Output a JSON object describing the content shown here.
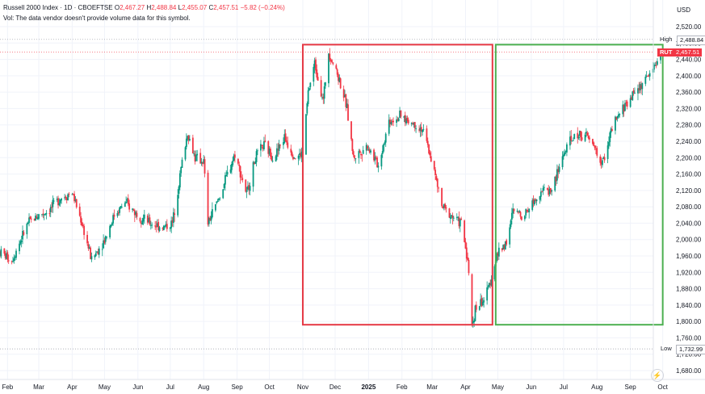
{
  "header": {
    "symbol": "Russell 2000 Index · 1D · CBOEFTSE",
    "o_label": "O",
    "o_value": "2,467.27",
    "h_label": "H",
    "h_value": "2,488.84",
    "l_label": "L",
    "l_value": "2,455.07",
    "c_label": "C",
    "c_value": "2,457.51",
    "change": "−5.82 (−0.24%)",
    "vol_note": "Vol: The data vendor doesn't provide volume data for this symbol."
  },
  "currency": "USD",
  "tags": {
    "high_label": "High",
    "high_value": "2,488.84",
    "rut_label": "RUT",
    "rut_value": "2,457.51",
    "low_label": "Low",
    "low_value": "1,732.99"
  },
  "logo_icon": "tradingview-logo-icon",
  "colors": {
    "up": "#089981",
    "down": "#f23645",
    "box_red": "#e53945",
    "box_green": "#4caf50"
  },
  "chart_data": {
    "type": "candlestick",
    "y_ticks": [
      "2,520.00",
      "2,480.00",
      "2,440.00",
      "2,400.00",
      "2,360.00",
      "2,320.00",
      "2,280.00",
      "2,240.00",
      "2,200.00",
      "2,160.00",
      "2,120.00",
      "2,080.00",
      "2,040.00",
      "2,000.00",
      "1,960.00",
      "1,920.00",
      "1,880.00",
      "1,840.00",
      "1,800.00",
      "1,760.00",
      "1,720.00",
      "1,680.00"
    ],
    "y_tick_values": [
      2520,
      2480,
      2440,
      2400,
      2360,
      2320,
      2280,
      2240,
      2200,
      2160,
      2120,
      2080,
      2040,
      2000,
      1960,
      1920,
      1880,
      1840,
      1800,
      1760,
      1720,
      1680
    ],
    "x_labels": [
      "Feb",
      "Mar",
      "Apr",
      "May",
      "Jun",
      "Jul",
      "Aug",
      "Sep",
      "Oct",
      "Nov",
      "Dec",
      "2025",
      "Feb",
      "Mar",
      "Apr",
      "May",
      "Jun",
      "Jul",
      "Aug",
      "Sep",
      "Oct"
    ],
    "x_label_dates": [
      "2024-02-01",
      "2024-03-01",
      "2024-04-01",
      "2024-05-01",
      "2024-06-01",
      "2024-07-01",
      "2024-08-01",
      "2024-09-01",
      "2024-10-01",
      "2024-11-01",
      "2024-12-01",
      "2025-01-01",
      "2025-02-01",
      "2025-03-01",
      "2025-04-01",
      "2025-05-01",
      "2025-06-01",
      "2025-07-01",
      "2025-08-01",
      "2025-09-01",
      "2025-10-01"
    ],
    "ylim": [
      1660,
      2540
    ],
    "high": 2488.84,
    "last": 2457.51,
    "low": 1732.99,
    "path": [
      [
        "2024-01-25",
        1970
      ],
      [
        "2024-02-05",
        1950
      ],
      [
        "2024-02-20",
        2040
      ],
      [
        "2024-03-01",
        2060
      ],
      [
        "2024-03-10",
        2070
      ],
      [
        "2024-03-20",
        2100
      ],
      [
        "2024-04-01",
        2115
      ],
      [
        "2024-04-10",
        2040
      ],
      [
        "2024-04-19",
        1950
      ],
      [
        "2024-05-01",
        2000
      ],
      [
        "2024-05-10",
        2060
      ],
      [
        "2024-05-20",
        2090
      ],
      [
        "2024-06-01",
        2060
      ],
      [
        "2024-06-12",
        2040
      ],
      [
        "2024-06-25",
        2030
      ],
      [
        "2024-07-03",
        2040
      ],
      [
        "2024-07-12",
        2190
      ],
      [
        "2024-07-17",
        2260
      ],
      [
        "2024-07-24",
        2200
      ],
      [
        "2024-08-01",
        2190
      ],
      [
        "2024-08-05",
        2040
      ],
      [
        "2024-08-15",
        2100
      ],
      [
        "2024-08-30",
        2210
      ],
      [
        "2024-09-10",
        2110
      ],
      [
        "2024-09-18",
        2200
      ],
      [
        "2024-09-26",
        2230
      ],
      [
        "2024-10-05",
        2200
      ],
      [
        "2024-10-15",
        2250
      ],
      [
        "2024-10-25",
        2200
      ],
      [
        "2024-11-01",
        2210
      ],
      [
        "2024-11-06",
        2360
      ],
      [
        "2024-11-12",
        2430
      ],
      [
        "2024-11-20",
        2340
      ],
      [
        "2024-11-25",
        2460
      ],
      [
        "2024-12-05",
        2390
      ],
      [
        "2024-12-12",
        2320
      ],
      [
        "2024-12-18",
        2200
      ],
      [
        "2024-12-31",
        2230
      ],
      [
        "2025-01-10",
        2180
      ],
      [
        "2025-01-20",
        2290
      ],
      [
        "2025-01-30",
        2300
      ],
      [
        "2025-02-07",
        2290
      ],
      [
        "2025-02-20",
        2270
      ],
      [
        "2025-03-01",
        2190
      ],
      [
        "2025-03-10",
        2080
      ],
      [
        "2025-03-18",
        2060
      ],
      [
        "2025-03-28",
        2040
      ],
      [
        "2025-04-03",
        1950
      ],
      [
        "2025-04-07",
        1790
      ],
      [
        "2025-04-10",
        1830
      ],
      [
        "2025-04-20",
        1860
      ],
      [
        "2025-04-30",
        1960
      ],
      [
        "2025-05-10",
        2000
      ],
      [
        "2025-05-15",
        2070
      ],
      [
        "2025-05-25",
        2060
      ],
      [
        "2025-06-10",
        2120
      ],
      [
        "2025-06-20",
        2120
      ],
      [
        "2025-07-01",
        2210
      ],
      [
        "2025-07-10",
        2250
      ],
      [
        "2025-07-20",
        2260
      ],
      [
        "2025-07-31",
        2220
      ],
      [
        "2025-08-05",
        2180
      ],
      [
        "2025-08-15",
        2270
      ],
      [
        "2025-08-25",
        2320
      ],
      [
        "2025-09-05",
        2360
      ],
      [
        "2025-09-15",
        2390
      ],
      [
        "2025-09-22",
        2420
      ],
      [
        "2025-10-01",
        2457.51
      ]
    ],
    "annotations": [
      {
        "shape": "rectangle",
        "color": "red",
        "x": [
          "2024-11-01",
          "2025-04-26"
        ],
        "y": [
          1792,
          2476
        ]
      },
      {
        "shape": "rectangle",
        "color": "green",
        "x": [
          "2025-04-29",
          "2025-10-01"
        ],
        "y": [
          1792,
          2476
        ]
      }
    ]
  }
}
